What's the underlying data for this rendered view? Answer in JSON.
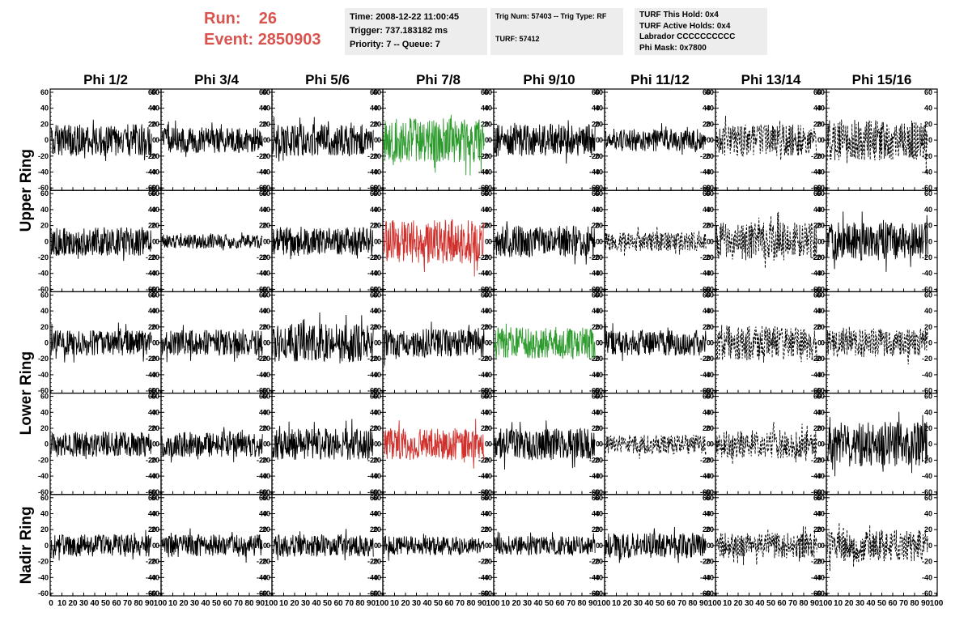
{
  "header": {
    "run_label": "Run:",
    "run_value": "26",
    "event_label": "Event:",
    "event_value": "2850903",
    "time": "Time: 2008-12-22 11:00:45",
    "trigger": "Trigger: 737.183182 ms",
    "priority": "Priority: 7 -- Queue: 7",
    "trig_num": "Trig Num: 57403 -- Trig Type: RF",
    "turf": "TURF: 57412",
    "turf_this_hold": "TURF This Hold: 0x4",
    "turf_active_holds": "TURF Active Holds: 0x4",
    "labrador": "Labrador CCCCCCCCCC",
    "phi_mask": "Phi Mask: 0x7800"
  },
  "colors": {
    "accent_text": "#d9534f",
    "info_bg": "#ededed",
    "trace_default": "#000000",
    "trace_green": "#2e9b2e",
    "trace_red": "#d0312d"
  },
  "chart_data": {
    "type": "line",
    "title": "",
    "columns": [
      "Phi 1/2",
      "Phi 3/4",
      "Phi 5/6",
      "Phi 7/8",
      "Phi 9/10",
      "Phi 11/12",
      "Phi 13/14",
      "Phi 15/16"
    ],
    "row_groups": [
      {
        "label": "Upper Ring",
        "rows": [
          0,
          1
        ]
      },
      {
        "label": "Lower Ring",
        "rows": [
          2,
          3
        ]
      },
      {
        "label": "Nadir Ring",
        "rows": [
          4
        ]
      }
    ],
    "ylim": [
      -60,
      60
    ],
    "yticks": [
      -60,
      -40,
      -20,
      0,
      20,
      40,
      60
    ],
    "xlim": [
      0,
      100
    ],
    "xticks": [
      0,
      10,
      20,
      30,
      40,
      50,
      60,
      70,
      80,
      90,
      100
    ],
    "xtick_labels_first": [
      "0",
      "10",
      "20",
      "30",
      "40",
      "50",
      "60",
      "70",
      "80",
      "90",
      "100"
    ],
    "xtick_labels_other": [
      "10",
      "20",
      "30",
      "40",
      "50",
      "60",
      "70",
      "80",
      "90",
      "100"
    ],
    "trace_styles": [
      [
        "solid",
        "solid",
        "solid",
        "green",
        "solid",
        "solid",
        "dashed",
        "dashed"
      ],
      [
        "solid",
        "solid",
        "solid",
        "red",
        "solid",
        "dashed",
        "dashed",
        "solid"
      ],
      [
        "solid",
        "solid",
        "solid",
        "solid",
        "green",
        "solid",
        "dashed",
        "dashed"
      ],
      [
        "solid",
        "solid",
        "solid",
        "red",
        "solid",
        "dashed",
        "dashed",
        "solid"
      ],
      [
        "solid",
        "solid",
        "solid",
        "solid",
        "solid",
        "solid",
        "dashed",
        "dashed"
      ]
    ],
    "trace_amplitudes": [
      [
        20,
        16,
        20,
        28,
        20,
        14,
        20,
        26
      ],
      [
        18,
        9,
        18,
        28,
        20,
        12,
        24,
        24
      ],
      [
        16,
        16,
        24,
        18,
        20,
        16,
        22,
        18
      ],
      [
        16,
        16,
        20,
        20,
        20,
        12,
        18,
        28
      ],
      [
        14,
        14,
        14,
        12,
        12,
        16,
        16,
        20
      ]
    ],
    "trace_x_range": [
      0,
      92
    ]
  }
}
